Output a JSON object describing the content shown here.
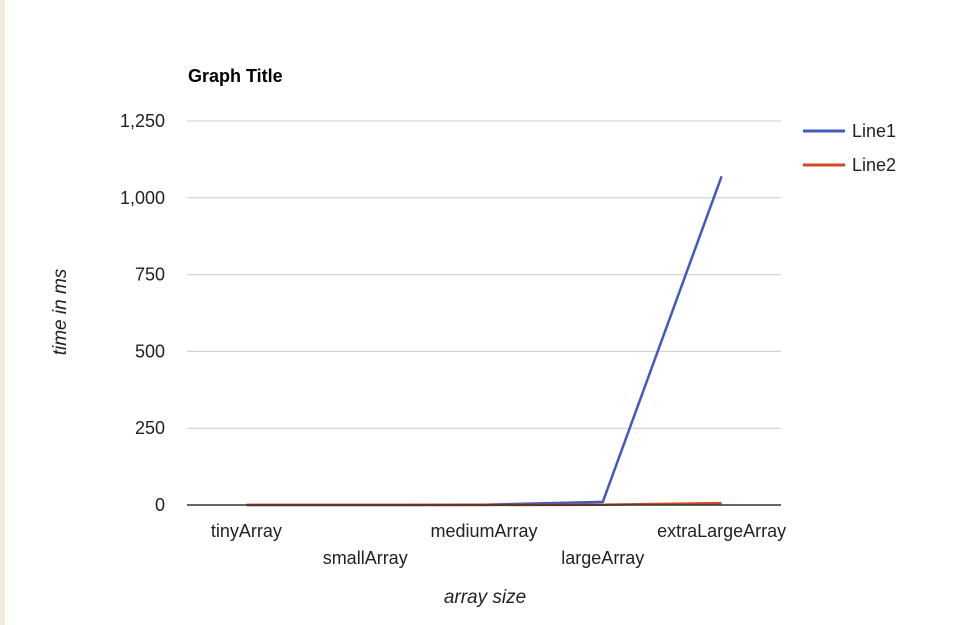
{
  "chart_data": {
    "type": "line",
    "title": "Graph Title",
    "xlabel": "array size",
    "ylabel": "time in ms",
    "categories": [
      "tinyArray",
      "smallArray",
      "mediumArray",
      "largeArray",
      "extraLargeArray"
    ],
    "series": [
      {
        "name": "Line1",
        "color": "#3f5bbf",
        "values": [
          0,
          0,
          1,
          10,
          1070
        ]
      },
      {
        "name": "Line2",
        "color": "#d04a22",
        "values": [
          0,
          0,
          0,
          1,
          6
        ]
      }
    ],
    "ylim": [
      0,
      1250
    ],
    "yticks": [
      0,
      250,
      500,
      750,
      1000,
      1250
    ],
    "ytick_labels": [
      "0",
      "250",
      "500",
      "750",
      "1,000",
      "1,250"
    ],
    "grid": true,
    "legend_position": "right"
  }
}
